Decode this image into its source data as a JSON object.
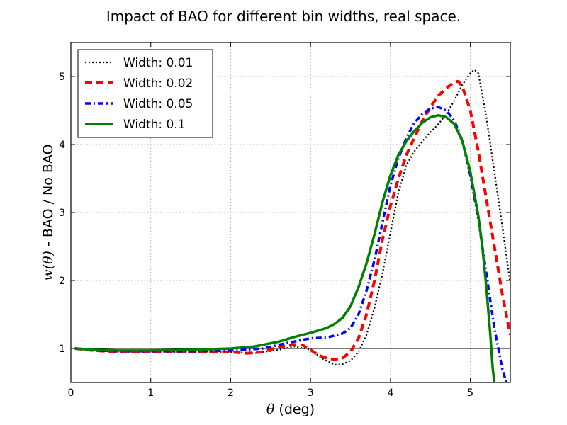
{
  "chart_data": {
    "type": "line",
    "title": "Impact of BAO for different bin widths, real space.",
    "xlabel": "θ (deg)",
    "ylabel_math": "w(θ)",
    "ylabel_rest": " - BAO / No BAO",
    "xlim": [
      0,
      5.5
    ],
    "ylim": [
      0.5,
      5.5
    ],
    "xticks": [
      0,
      1,
      2,
      3,
      4,
      5
    ],
    "yticks": [
      1,
      2,
      3,
      4,
      5
    ],
    "grid": true,
    "legend_position": "top-left",
    "reference_line": 1,
    "series": [
      {
        "name": "Width: 0.01",
        "color": "#000000",
        "style": "dotted",
        "points": [
          [
            0.05,
            1.01
          ],
          [
            0.3,
            0.97
          ],
          [
            0.6,
            0.95
          ],
          [
            1.0,
            0.95
          ],
          [
            1.5,
            0.95
          ],
          [
            2.0,
            0.95
          ],
          [
            2.3,
            0.93
          ],
          [
            2.6,
            0.98
          ],
          [
            2.8,
            1.03
          ],
          [
            3.0,
            0.98
          ],
          [
            3.15,
            0.85
          ],
          [
            3.3,
            0.76
          ],
          [
            3.4,
            0.77
          ],
          [
            3.5,
            0.82
          ],
          [
            3.6,
            0.95
          ],
          [
            3.7,
            1.2
          ],
          [
            3.8,
            1.6
          ],
          [
            3.9,
            2.1
          ],
          [
            4.0,
            2.7
          ],
          [
            4.1,
            3.3
          ],
          [
            4.2,
            3.7
          ],
          [
            4.3,
            3.9
          ],
          [
            4.4,
            4.05
          ],
          [
            4.5,
            4.18
          ],
          [
            4.6,
            4.3
          ],
          [
            4.7,
            4.45
          ],
          [
            4.8,
            4.65
          ],
          [
            4.9,
            4.88
          ],
          [
            5.0,
            5.05
          ],
          [
            5.05,
            5.1
          ],
          [
            5.1,
            5.05
          ],
          [
            5.2,
            4.4
          ],
          [
            5.3,
            3.6
          ],
          [
            5.4,
            2.8
          ],
          [
            5.5,
            1.95
          ]
        ]
      },
      {
        "name": "Width: 0.02",
        "color": "#ff0000",
        "style": "dashed",
        "points": [
          [
            0.05,
            1.0
          ],
          [
            0.3,
            0.97
          ],
          [
            0.6,
            0.95
          ],
          [
            1.0,
            0.95
          ],
          [
            1.5,
            0.95
          ],
          [
            2.0,
            0.95
          ],
          [
            2.2,
            0.93
          ],
          [
            2.4,
            0.95
          ],
          [
            2.6,
            1.02
          ],
          [
            2.8,
            1.06
          ],
          [
            2.9,
            1.05
          ],
          [
            3.0,
            0.98
          ],
          [
            3.1,
            0.9
          ],
          [
            3.2,
            0.86
          ],
          [
            3.3,
            0.84
          ],
          [
            3.4,
            0.86
          ],
          [
            3.5,
            0.95
          ],
          [
            3.6,
            1.15
          ],
          [
            3.7,
            1.5
          ],
          [
            3.8,
            2.0
          ],
          [
            3.9,
            2.6
          ],
          [
            4.0,
            3.1
          ],
          [
            4.1,
            3.5
          ],
          [
            4.2,
            3.85
          ],
          [
            4.3,
            4.1
          ],
          [
            4.4,
            4.35
          ],
          [
            4.5,
            4.55
          ],
          [
            4.6,
            4.72
          ],
          [
            4.7,
            4.83
          ],
          [
            4.8,
            4.92
          ],
          [
            4.85,
            4.93
          ],
          [
            4.9,
            4.85
          ],
          [
            5.0,
            4.5
          ],
          [
            5.1,
            3.9
          ],
          [
            5.2,
            3.2
          ],
          [
            5.3,
            2.5
          ],
          [
            5.4,
            1.8
          ],
          [
            5.5,
            1.2
          ]
        ]
      },
      {
        "name": "Width: 0.05",
        "color": "#0000ff",
        "style": "dashdot",
        "points": [
          [
            0.05,
            1.0
          ],
          [
            0.3,
            0.97
          ],
          [
            0.6,
            0.96
          ],
          [
            1.0,
            0.96
          ],
          [
            1.5,
            0.96
          ],
          [
            2.0,
            0.97
          ],
          [
            2.4,
            1.0
          ],
          [
            2.7,
            1.08
          ],
          [
            3.0,
            1.15
          ],
          [
            3.2,
            1.16
          ],
          [
            3.4,
            1.22
          ],
          [
            3.5,
            1.3
          ],
          [
            3.6,
            1.5
          ],
          [
            3.7,
            1.85
          ],
          [
            3.8,
            2.3
          ],
          [
            3.9,
            2.85
          ],
          [
            4.0,
            3.4
          ],
          [
            4.1,
            3.8
          ],
          [
            4.2,
            4.1
          ],
          [
            4.3,
            4.32
          ],
          [
            4.4,
            4.45
          ],
          [
            4.5,
            4.53
          ],
          [
            4.6,
            4.55
          ],
          [
            4.7,
            4.5
          ],
          [
            4.8,
            4.35
          ],
          [
            4.9,
            4.05
          ],
          [
            5.0,
            3.55
          ],
          [
            5.1,
            2.9
          ],
          [
            5.2,
            2.1
          ],
          [
            5.3,
            1.3
          ],
          [
            5.4,
            0.7
          ],
          [
            5.45,
            0.5
          ]
        ]
      },
      {
        "name": "Width: 0.1",
        "color": "#008000",
        "style": "solid",
        "points": [
          [
            0.05,
            1.0
          ],
          [
            0.3,
            0.98
          ],
          [
            0.6,
            0.97
          ],
          [
            1.0,
            0.97
          ],
          [
            1.5,
            0.98
          ],
          [
            2.0,
            1.0
          ],
          [
            2.3,
            1.03
          ],
          [
            2.6,
            1.1
          ],
          [
            2.8,
            1.17
          ],
          [
            3.0,
            1.23
          ],
          [
            3.2,
            1.3
          ],
          [
            3.3,
            1.36
          ],
          [
            3.4,
            1.45
          ],
          [
            3.5,
            1.62
          ],
          [
            3.6,
            1.9
          ],
          [
            3.7,
            2.25
          ],
          [
            3.8,
            2.68
          ],
          [
            3.9,
            3.15
          ],
          [
            4.0,
            3.55
          ],
          [
            4.1,
            3.85
          ],
          [
            4.2,
            4.05
          ],
          [
            4.3,
            4.2
          ],
          [
            4.4,
            4.32
          ],
          [
            4.5,
            4.4
          ],
          [
            4.6,
            4.43
          ],
          [
            4.7,
            4.4
          ],
          [
            4.8,
            4.3
          ],
          [
            4.9,
            4.05
          ],
          [
            5.0,
            3.6
          ],
          [
            5.1,
            2.95
          ],
          [
            5.15,
            2.5
          ],
          [
            5.2,
            1.9
          ],
          [
            5.25,
            1.2
          ],
          [
            5.28,
            0.7
          ],
          [
            5.3,
            0.5
          ]
        ]
      }
    ]
  }
}
